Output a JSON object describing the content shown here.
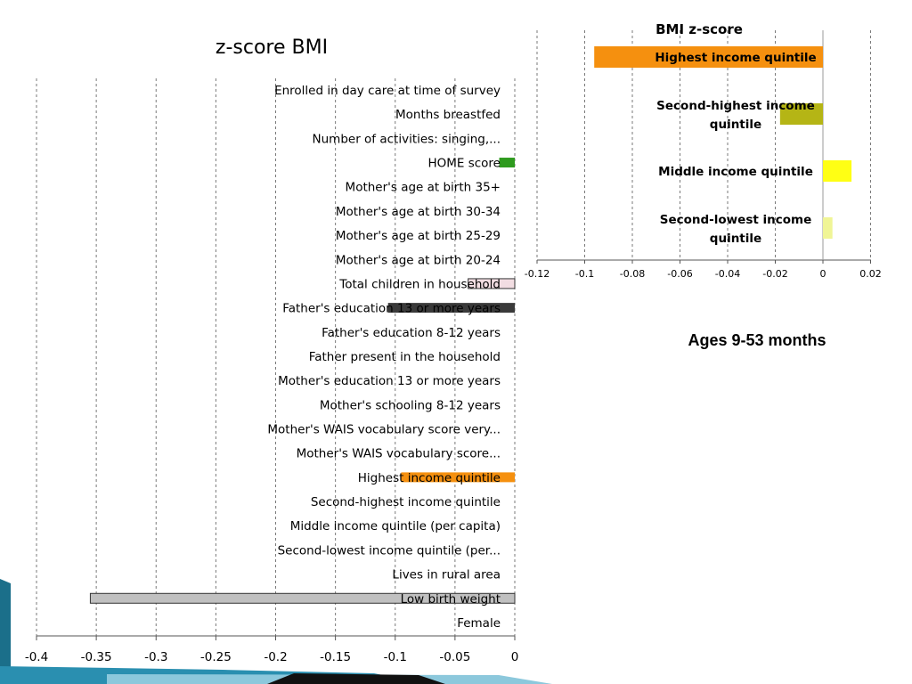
{
  "caption": "Ages 9-53 months",
  "chart_data": [
    {
      "type": "bar",
      "orientation": "horizontal",
      "title": "z-score BMI",
      "xlim": [
        -0.4,
        0
      ],
      "ticks": [
        -0.4,
        -0.35,
        -0.3,
        -0.25,
        -0.2,
        -0.15,
        -0.1,
        -0.05,
        0
      ],
      "tick_labels": [
        "-0.4",
        "-0.35",
        "-0.3",
        "-0.25",
        "-0.2",
        "-0.15",
        "-0.1",
        "-0.05",
        "0"
      ],
      "grid": true,
      "categories": [
        "Enrolled in day care at time of survey",
        "Months breastfed",
        "Number of activities: singing,...",
        "HOME score",
        "Mother's age at birth 35+",
        "Mother's age at birth 30-34",
        "Mother's age at birth 25-29",
        "Mother's age at birth 20-24",
        "Total children in household",
        "Father's education 13 or more years",
        "Father's education 8-12 years",
        "Father present in the household",
        "Mother's education 13 or more years",
        "Mother's schooling 8-12 years",
        "Mother's WAIS vocabulary score very...",
        "Mother's WAIS vocabulary score...",
        "Highest income quintile",
        "Second-highest income quintile",
        "Middle income quintile (per capita)",
        "Second-lowest income quintile (per...",
        "Lives in rural area",
        "Low birth weight",
        "Female"
      ],
      "values": [
        0,
        0,
        0,
        -0.013,
        0,
        0,
        0,
        0,
        -0.039,
        -0.106,
        0,
        0,
        0,
        0,
        0,
        0,
        -0.095,
        0,
        0,
        0,
        0,
        -0.355,
        0
      ],
      "colors": [
        "#ffffff",
        "#ffffff",
        "#ffffff",
        "#2e9a1e",
        "#ffffff",
        "#ffffff",
        "#ffffff",
        "#ffffff",
        "#f2dde2",
        "#3a3a3a",
        "#ffffff",
        "#ffffff",
        "#ffffff",
        "#ffffff",
        "#ffffff",
        "#ffffff",
        "#f5900f",
        "#ffffff",
        "#ffffff",
        "#ffffff",
        "#ffffff",
        "#c0c0c0",
        "#ffffff"
      ]
    },
    {
      "type": "bar",
      "orientation": "horizontal",
      "title": "BMI z-score",
      "xlim": [
        -0.12,
        0.02
      ],
      "ticks": [
        -0.12,
        -0.1,
        -0.08,
        -0.06,
        -0.04,
        -0.02,
        0,
        0.02
      ],
      "tick_labels": [
        "-0.12",
        "-0.1",
        "-0.08",
        "-0.06",
        "-0.04",
        "-0.02",
        "0",
        "0.02"
      ],
      "grid": true,
      "categories": [
        [
          "Highest income quintile"
        ],
        [
          "Second-highest income",
          "quintile"
        ],
        [
          "Middle income quintile"
        ],
        [
          "Second-lowest income",
          "quintile"
        ]
      ],
      "values": [
        -0.096,
        -0.018,
        0.012,
        0.004
      ],
      "colors": [
        "#f5900f",
        "#b5b515",
        "#ffff14",
        "#f0f596"
      ]
    }
  ]
}
